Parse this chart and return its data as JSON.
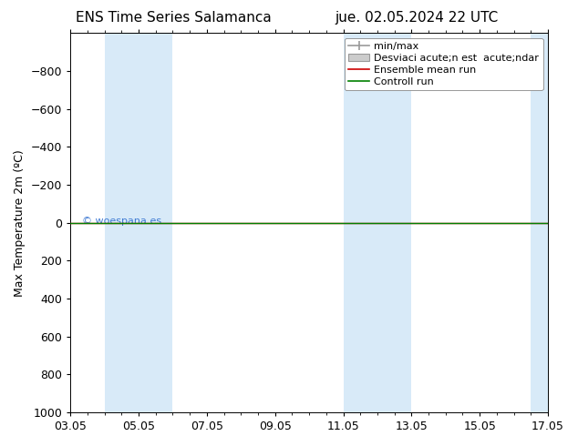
{
  "title_left": "ENS Time Series Salamanca",
  "title_right": "jue. 02.05.2024 22 UTC",
  "ylabel": "Max Temperature 2m (ºC)",
  "ylim_top": -1000,
  "ylim_bottom": 1000,
  "yticks": [
    -800,
    -600,
    -400,
    -200,
    0,
    200,
    400,
    600,
    800,
    1000
  ],
  "xtick_labels": [
    "03.05",
    "05.05",
    "07.05",
    "09.05",
    "11.05",
    "13.05",
    "15.05",
    "17.05"
  ],
  "xtick_positions": [
    0,
    2,
    4,
    6,
    8,
    10,
    12,
    14
  ],
  "blue_shade_ranges": [
    [
      1.0,
      3.0
    ],
    [
      8.0,
      10.0
    ],
    [
      13.5,
      14.5
    ]
  ],
  "flat_line_y": 0,
  "line_color_green": "#008000",
  "line_color_red": "#cc0000",
  "legend_labels": [
    "min/max",
    "Desviaci acute;n est  acute;ndar",
    "Ensemble mean run",
    "Controll run"
  ],
  "legend_line_colors": [
    "#aaaaaa",
    "#bbbbbb",
    "#cc0000",
    "#008000"
  ],
  "watermark": "© woespana.es",
  "background_color": "#ffffff",
  "shade_color": "#d8eaf8",
  "title_fontsize": 11,
  "axis_fontsize": 9,
  "legend_fontsize": 8
}
